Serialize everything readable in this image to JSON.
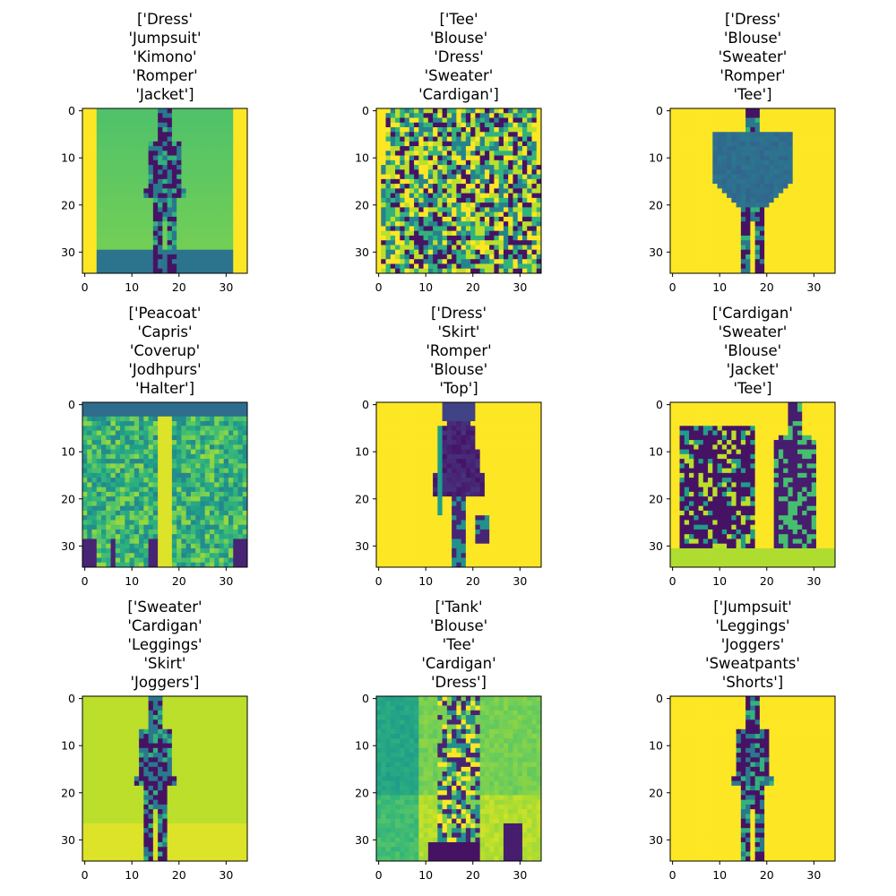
{
  "chart_data": {
    "type": "heatmap",
    "colormap": "viridis",
    "image_size": [
      35,
      35
    ],
    "xticks": [
      0,
      10,
      20,
      30
    ],
    "yticks": [
      0,
      10,
      20,
      30
    ],
    "xlim": [
      -0.5,
      34.5
    ],
    "ylim": [
      34.5,
      -0.5
    ],
    "grid": false,
    "panels": [
      {
        "title_lines": [
          "['Dress'",
          "'Jumpsuit'",
          "'Kimono'",
          "'Romper'",
          "'Jacket']"
        ],
        "scene": "single-person-full-body"
      },
      {
        "title_lines": [
          "['Tee'",
          "'Blouse'",
          "'Dress'",
          "'Sweater'",
          "'Cardigan']"
        ],
        "scene": "patterned-top-closeup"
      },
      {
        "title_lines": [
          "['Dress'",
          "'Blouse'",
          "'Sweater'",
          "'Romper'",
          "'Tee']"
        ],
        "scene": "single-person-full-body"
      },
      {
        "title_lines": [
          "['Peacoat'",
          "'Capris'",
          "'Coverup'",
          "'Jodhpurs'",
          "'Halter']"
        ],
        "scene": "two-legs-patterned"
      },
      {
        "title_lines": [
          "['Dress'",
          "'Skirt'",
          "'Romper'",
          "'Blouse'",
          "'Top']"
        ],
        "scene": "single-person-dress"
      },
      {
        "title_lines": [
          "['Cardigan'",
          "'Sweater'",
          "'Blouse'",
          "'Jacket'",
          "'Tee']"
        ],
        "scene": "sweater-and-person"
      },
      {
        "title_lines": [
          "['Sweater'",
          "'Cardigan'",
          "'Leggings'",
          "'Skirt'",
          "'Joggers']"
        ],
        "scene": "single-person-full-body"
      },
      {
        "title_lines": [
          "['Tank'",
          "'Blouse'",
          "'Tee'",
          "'Cardigan'",
          "'Dress']"
        ],
        "scene": "person-indoor-background"
      },
      {
        "title_lines": [
          "['Jumpsuit'",
          "'Leggings'",
          "'Joggers'",
          "'Sweatpants'",
          "'Shorts']"
        ],
        "scene": "single-person-full-body"
      }
    ]
  }
}
